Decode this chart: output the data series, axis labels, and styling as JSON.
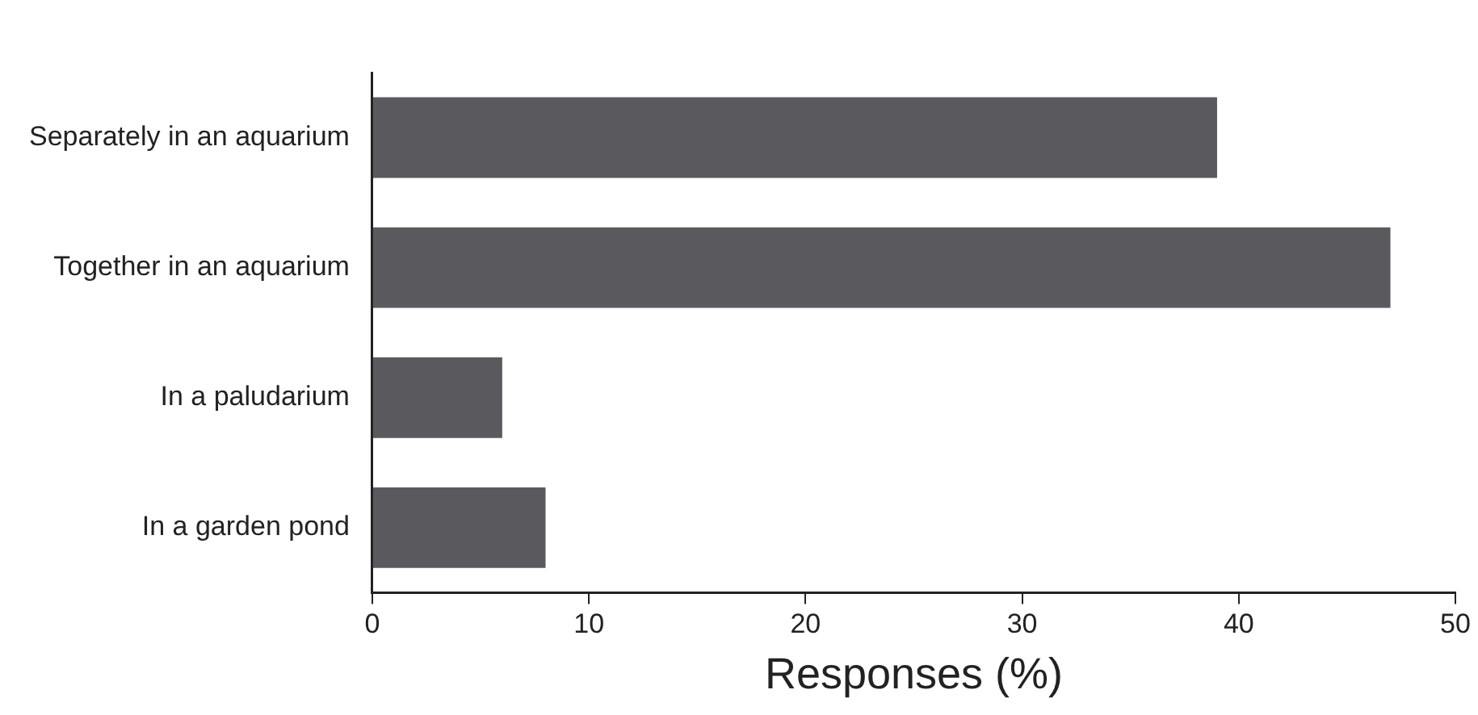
{
  "chart_data": {
    "type": "bar",
    "orientation": "horizontal",
    "xlabel": "Responses (%)",
    "categories": [
      "Separately in an aquarium",
      "Together in an aquarium",
      "In a paludarium",
      "In a garden pond"
    ],
    "values": [
      39,
      47,
      6,
      8
    ],
    "color": "#5a595e",
    "xlim": [
      0,
      50
    ],
    "xticks": [
      0,
      10,
      20,
      30,
      40,
      50
    ],
    "grid": false,
    "legend": false
  }
}
